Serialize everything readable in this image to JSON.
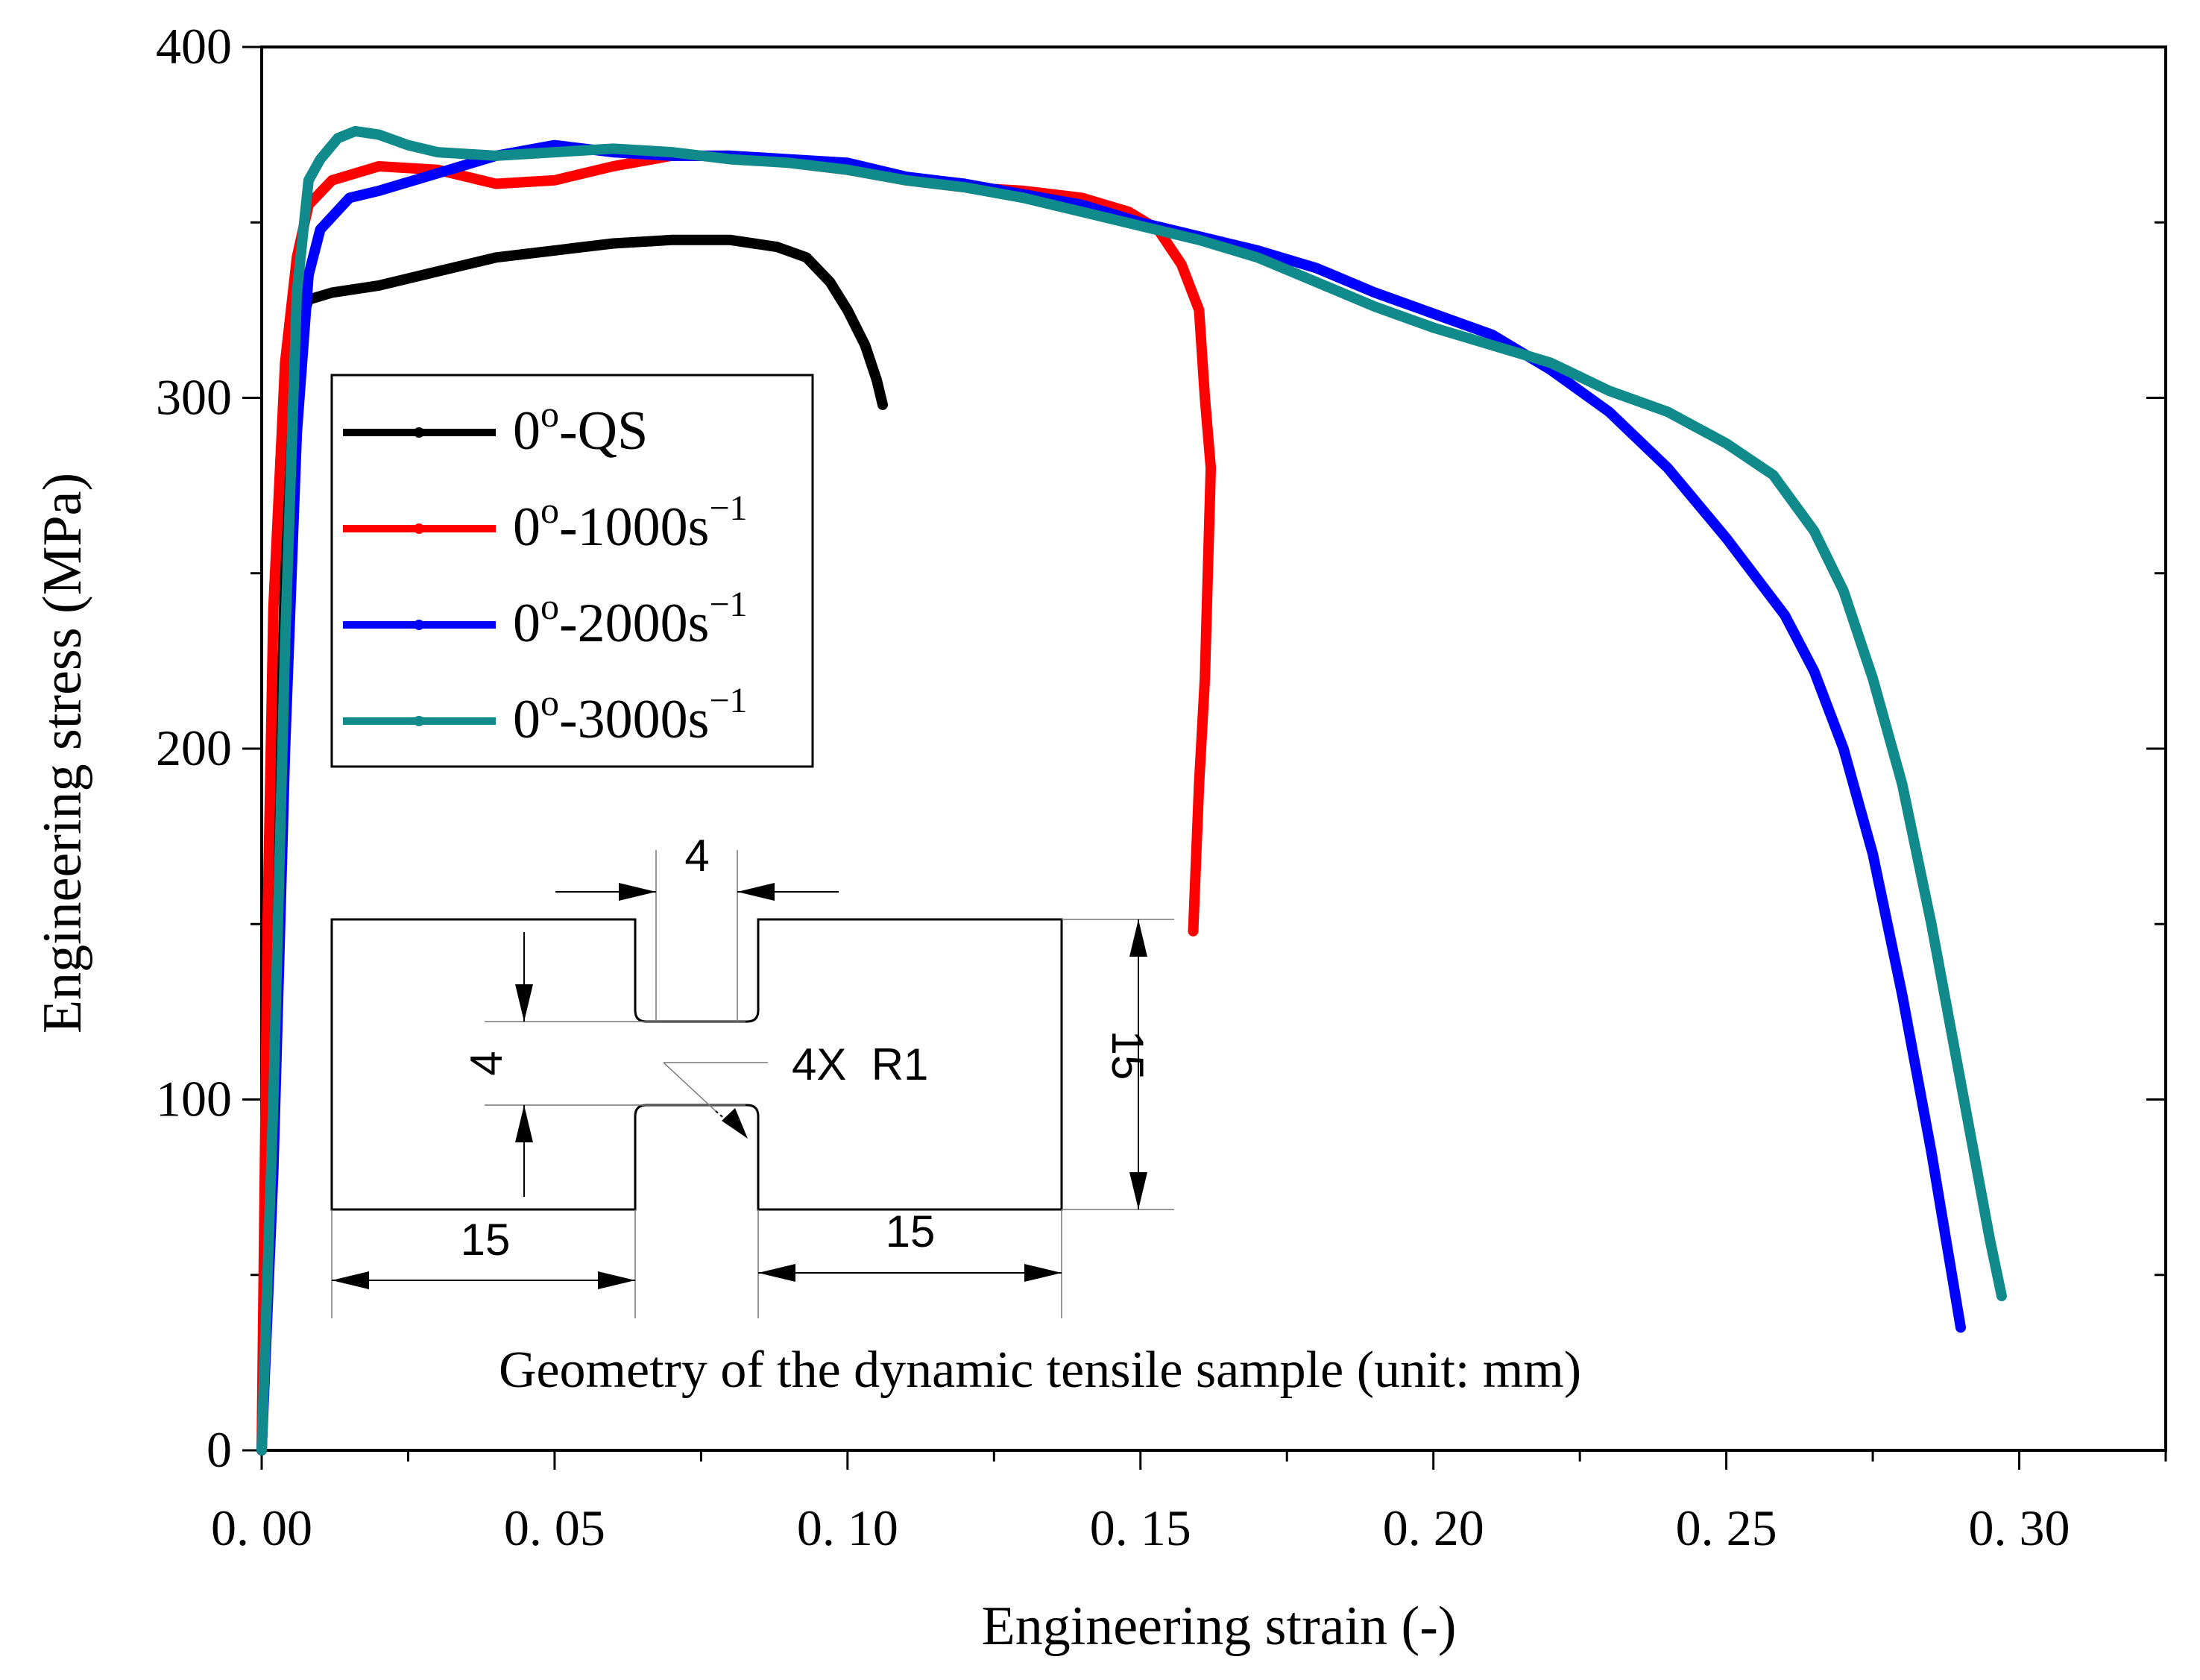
{
  "chart_data": {
    "type": "line",
    "xlabel": "Engineering strain (-)",
    "ylabel": "Engineering stress (MPa)",
    "xlim": [
      0.0,
      0.325
    ],
    "ylim": [
      0,
      400
    ],
    "x_ticks": [
      {
        "value": 0.0,
        "label": "0. 00"
      },
      {
        "value": 0.05,
        "label": "0. 05"
      },
      {
        "value": 0.1,
        "label": "0. 10"
      },
      {
        "value": 0.15,
        "label": "0. 15"
      },
      {
        "value": 0.2,
        "label": "0. 20"
      },
      {
        "value": 0.25,
        "label": "0. 25"
      },
      {
        "value": 0.3,
        "label": "0. 30"
      }
    ],
    "y_ticks": [
      {
        "value": 0,
        "label": "0"
      },
      {
        "value": 100,
        "label": "100"
      },
      {
        "value": 200,
        "label": "200"
      },
      {
        "value": 300,
        "label": "300"
      },
      {
        "value": 400,
        "label": "400"
      }
    ],
    "legend_position": "upper-left",
    "series": [
      {
        "name": "0°-QS",
        "legend_base": "0",
        "legend_sup": "o",
        "legend_mid": "-QS",
        "legend_exp": "",
        "color": "#000000",
        "points": [
          [
            0.0,
            0
          ],
          [
            0.002,
            120
          ],
          [
            0.004,
            250
          ],
          [
            0.006,
            318
          ],
          [
            0.008,
            328
          ],
          [
            0.012,
            330
          ],
          [
            0.02,
            332
          ],
          [
            0.03,
            336
          ],
          [
            0.04,
            340
          ],
          [
            0.05,
            342
          ],
          [
            0.06,
            344
          ],
          [
            0.07,
            345
          ],
          [
            0.08,
            345
          ],
          [
            0.088,
            343
          ],
          [
            0.093,
            340
          ],
          [
            0.097,
            333
          ],
          [
            0.1,
            325
          ],
          [
            0.103,
            315
          ],
          [
            0.105,
            305
          ],
          [
            0.106,
            298
          ]
        ]
      },
      {
        "name": "0°-1000s^-1",
        "legend_base": "0",
        "legend_sup": "o",
        "legend_mid": "-1000s",
        "legend_exp": "−1",
        "color": "#ff0000",
        "points": [
          [
            0.0,
            0
          ],
          [
            0.001,
            150
          ],
          [
            0.002,
            240
          ],
          [
            0.004,
            310
          ],
          [
            0.006,
            340
          ],
          [
            0.008,
            355
          ],
          [
            0.012,
            362
          ],
          [
            0.02,
            366
          ],
          [
            0.03,
            365
          ],
          [
            0.04,
            361
          ],
          [
            0.05,
            362
          ],
          [
            0.06,
            366
          ],
          [
            0.07,
            369
          ],
          [
            0.08,
            369
          ],
          [
            0.09,
            367
          ],
          [
            0.1,
            365
          ],
          [
            0.11,
            362
          ],
          [
            0.12,
            360
          ],
          [
            0.13,
            359
          ],
          [
            0.14,
            357
          ],
          [
            0.148,
            353
          ],
          [
            0.153,
            348
          ],
          [
            0.157,
            338
          ],
          [
            0.16,
            325
          ],
          [
            0.161,
            300
          ],
          [
            0.162,
            280
          ],
          [
            0.1615,
            250
          ],
          [
            0.161,
            220
          ],
          [
            0.16,
            190
          ],
          [
            0.159,
            148
          ]
        ]
      },
      {
        "name": "0°-2000s^-1",
        "legend_base": "0",
        "legend_sup": "o",
        "legend_mid": "-2000s",
        "legend_exp": "−1",
        "color": "#0000ff",
        "points": [
          [
            0.0,
            0
          ],
          [
            0.002,
            80
          ],
          [
            0.004,
            200
          ],
          [
            0.006,
            290
          ],
          [
            0.008,
            335
          ],
          [
            0.01,
            348
          ],
          [
            0.015,
            357
          ],
          [
            0.02,
            359
          ],
          [
            0.03,
            364
          ],
          [
            0.04,
            369
          ],
          [
            0.05,
            372
          ],
          [
            0.06,
            370
          ],
          [
            0.07,
            369
          ],
          [
            0.08,
            369
          ],
          [
            0.09,
            368
          ],
          [
            0.1,
            367
          ],
          [
            0.11,
            363
          ],
          [
            0.12,
            361
          ],
          [
            0.13,
            358
          ],
          [
            0.14,
            355
          ],
          [
            0.15,
            350
          ],
          [
            0.16,
            346
          ],
          [
            0.17,
            342
          ],
          [
            0.18,
            337
          ],
          [
            0.19,
            330
          ],
          [
            0.2,
            324
          ],
          [
            0.21,
            318
          ],
          [
            0.22,
            308
          ],
          [
            0.23,
            296
          ],
          [
            0.24,
            280
          ],
          [
            0.25,
            260
          ],
          [
            0.26,
            238
          ],
          [
            0.265,
            222
          ],
          [
            0.27,
            200
          ],
          [
            0.275,
            170
          ],
          [
            0.28,
            130
          ],
          [
            0.285,
            85
          ],
          [
            0.29,
            35
          ]
        ]
      },
      {
        "name": "0°-3000s^-1",
        "legend_base": "0",
        "legend_sup": "o",
        "legend_mid": "-3000s",
        "legend_exp": "−1",
        "color": "#108a8a",
        "points": [
          [
            0.0,
            0
          ],
          [
            0.002,
            100
          ],
          [
            0.004,
            230
          ],
          [
            0.006,
            330
          ],
          [
            0.008,
            362
          ],
          [
            0.01,
            368
          ],
          [
            0.013,
            374
          ],
          [
            0.016,
            376
          ],
          [
            0.02,
            375
          ],
          [
            0.025,
            372
          ],
          [
            0.03,
            370
          ],
          [
            0.04,
            369
          ],
          [
            0.05,
            370
          ],
          [
            0.06,
            371
          ],
          [
            0.07,
            370
          ],
          [
            0.08,
            368
          ],
          [
            0.09,
            367
          ],
          [
            0.1,
            365
          ],
          [
            0.11,
            362
          ],
          [
            0.12,
            360
          ],
          [
            0.13,
            357
          ],
          [
            0.14,
            353
          ],
          [
            0.15,
            349
          ],
          [
            0.16,
            345
          ],
          [
            0.17,
            340
          ],
          [
            0.18,
            333
          ],
          [
            0.19,
            326
          ],
          [
            0.2,
            320
          ],
          [
            0.21,
            315
          ],
          [
            0.22,
            310
          ],
          [
            0.23,
            302
          ],
          [
            0.24,
            296
          ],
          [
            0.25,
            287
          ],
          [
            0.258,
            278
          ],
          [
            0.265,
            262
          ],
          [
            0.27,
            245
          ],
          [
            0.275,
            220
          ],
          [
            0.28,
            190
          ],
          [
            0.285,
            150
          ],
          [
            0.29,
            105
          ],
          [
            0.295,
            60
          ],
          [
            0.297,
            44
          ]
        ]
      }
    ]
  },
  "inset": {
    "dim_top_width": "4",
    "dim_neck_height": "4",
    "dim_radius": "4X  R1",
    "dim_total_height": "15",
    "dim_left_length": "15",
    "dim_right_length": "15",
    "caption": "Geometry of the dynamic tensile sample (unit: mm)"
  }
}
